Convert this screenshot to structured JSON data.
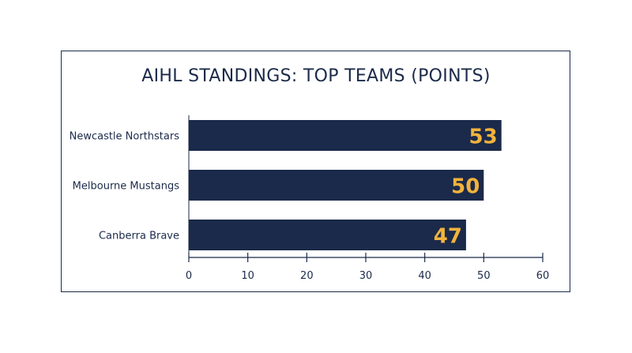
{
  "chart_data": {
    "type": "bar",
    "orientation": "horizontal",
    "title": "AIHL STANDINGS: TOP TEAMS (POINTS)",
    "categories": [
      "Newcastle Northstars",
      "Melbourne Mustangs",
      "Canberra Brave"
    ],
    "values": [
      53,
      50,
      47
    ],
    "value_labels": [
      "53",
      "50",
      "47"
    ],
    "xlim": [
      0,
      60
    ],
    "xticks": [
      0,
      10,
      20,
      30,
      40,
      50,
      60
    ],
    "xtick_labels": [
      "0",
      "10",
      "20",
      "30",
      "40",
      "50",
      "60"
    ],
    "grid": false,
    "legend": "none",
    "colors": {
      "bar": "#1b2a4a",
      "value_label": "#f2b33d",
      "text": "#1b2a4a",
      "axis": "#1b2a4a"
    }
  }
}
